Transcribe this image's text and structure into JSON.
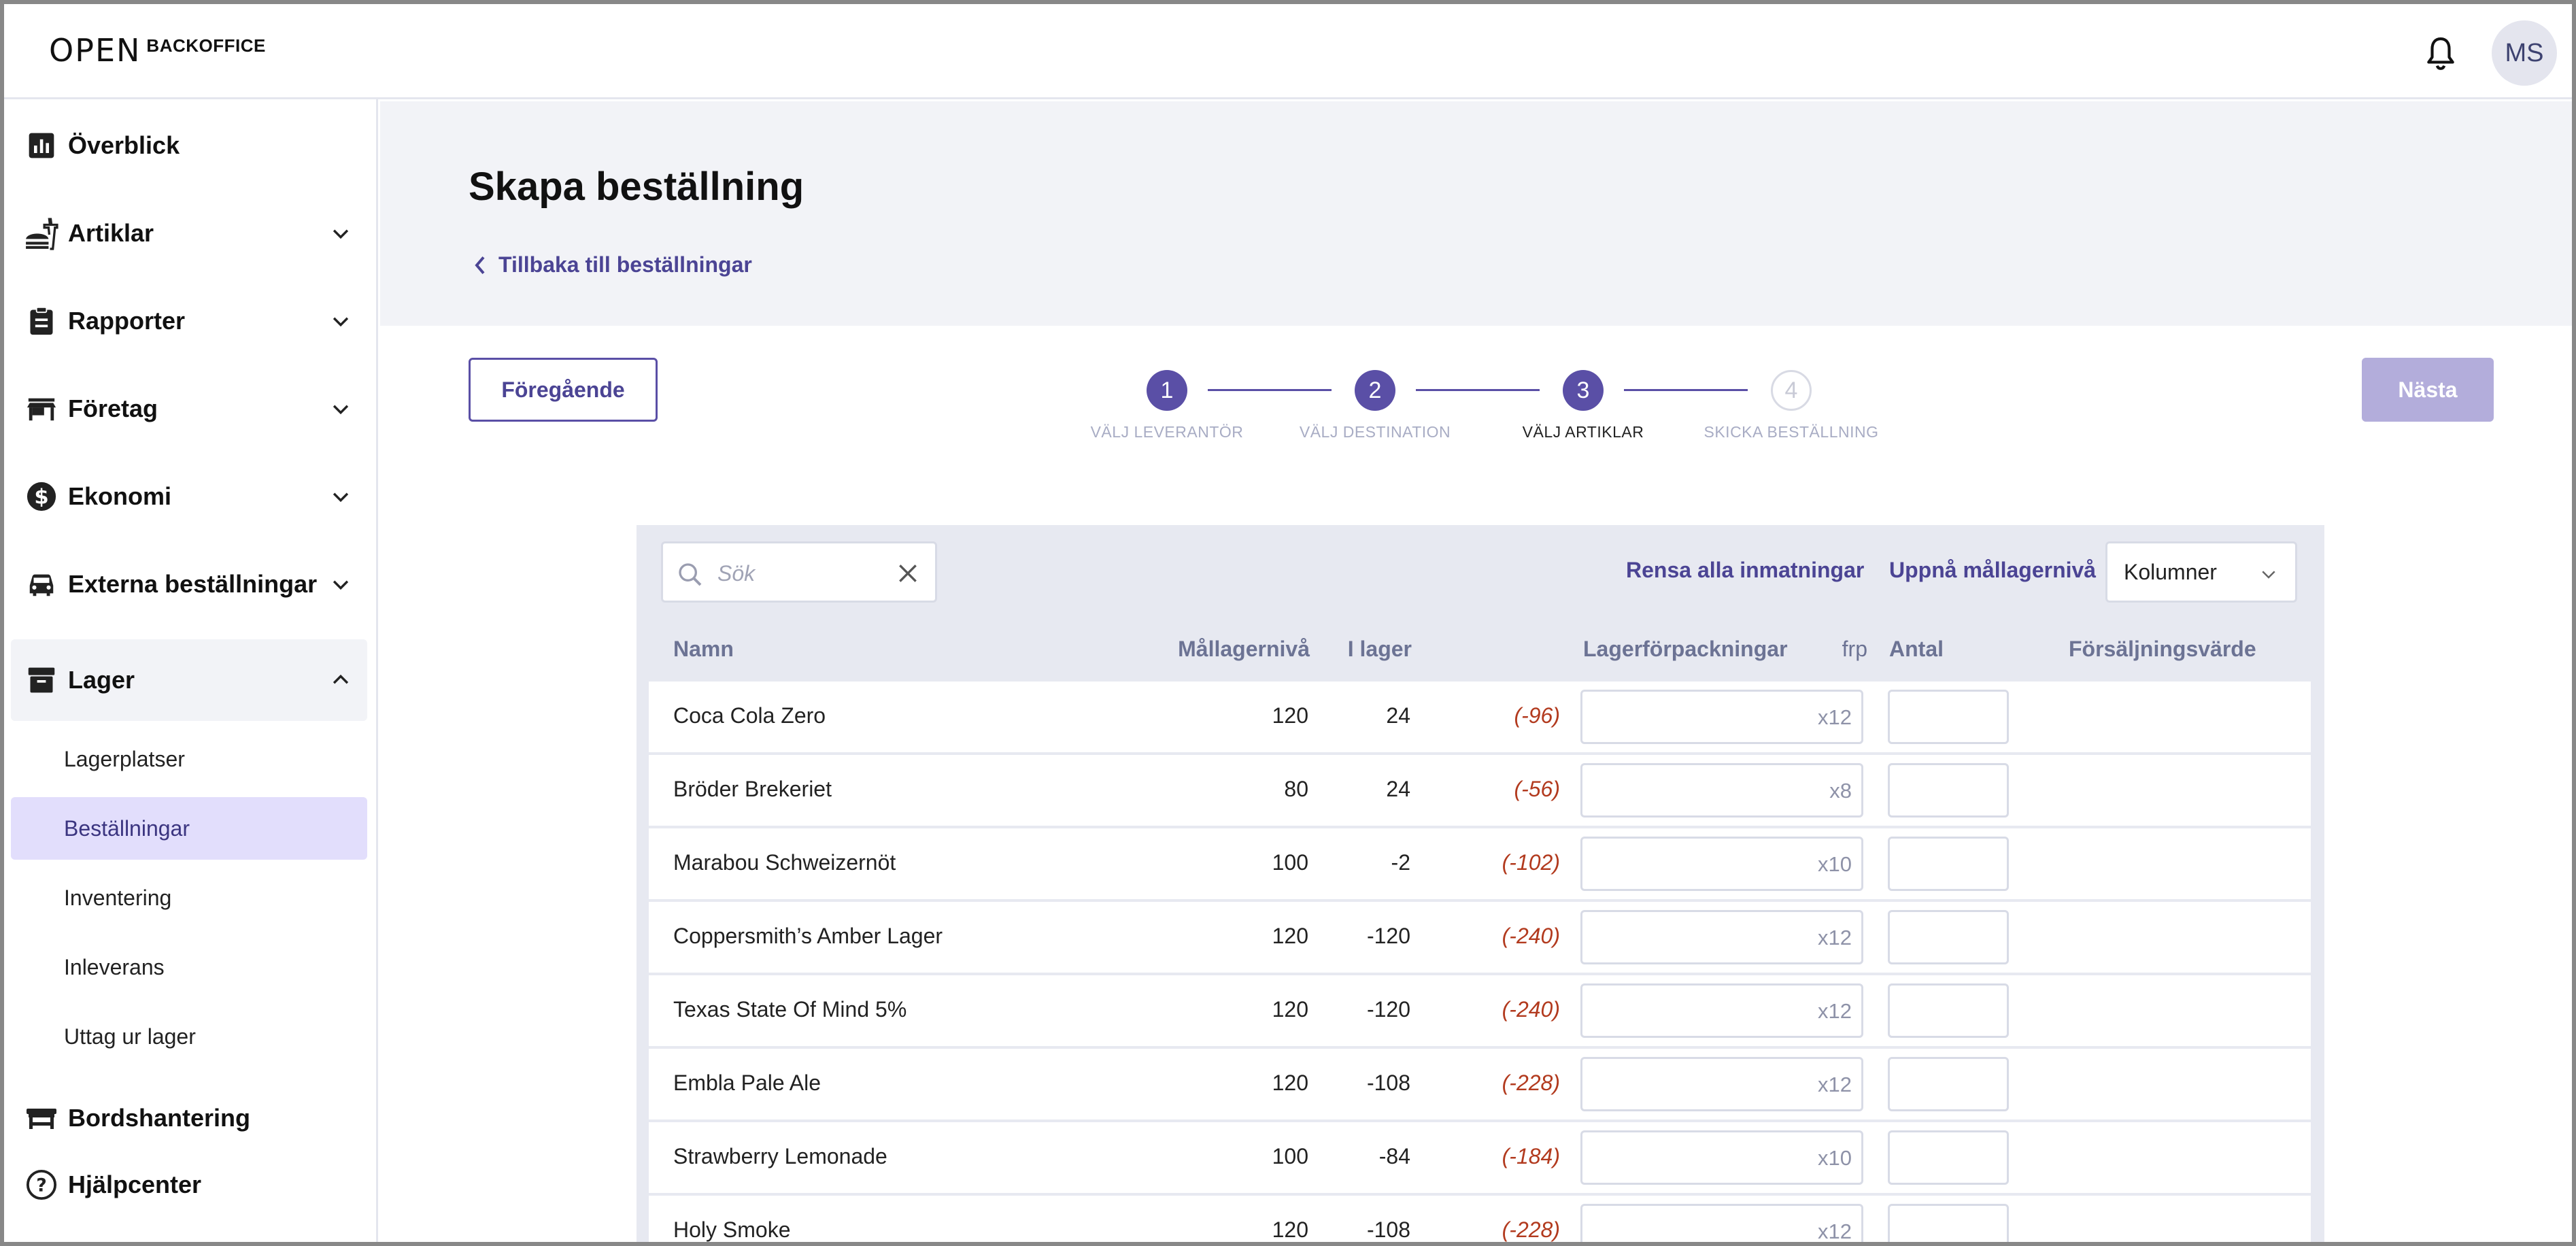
{
  "app": {
    "logo_mark": "OPEN",
    "logo_text": "BACKOFFICE",
    "avatar_initials": "MS"
  },
  "sidebar": {
    "items": [
      {
        "label": "Överblick",
        "icon": "chart-icon"
      },
      {
        "label": "Artiklar",
        "icon": "food-icon"
      },
      {
        "label": "Rapporter",
        "icon": "clipboard-icon"
      },
      {
        "label": "Företag",
        "icon": "store-icon"
      },
      {
        "label": "Ekonomi",
        "icon": "dollar-icon"
      },
      {
        "label": "Externa beställningar",
        "icon": "car-icon"
      },
      {
        "label": "Lager",
        "icon": "archive-icon"
      }
    ],
    "sub_items": [
      "Lagerplatser",
      "Beställningar",
      "Inventering",
      "Inleverans",
      "Uttag ur lager"
    ],
    "bottom_items": [
      {
        "label": "Bordshantering",
        "icon": "table-icon"
      },
      {
        "label": "Hjälpcenter",
        "icon": "help-icon"
      }
    ],
    "active_sub": "Beställningar"
  },
  "header": {
    "title": "Skapa beställning",
    "back_label": "Tillbaka till beställningar"
  },
  "wizard": {
    "prev_label": "Föregående",
    "next_label": "Nästa",
    "steps": [
      {
        "num": "1",
        "label": "VÄLJ LEVERANTÖR"
      },
      {
        "num": "2",
        "label": "VÄLJ DESTINATION"
      },
      {
        "num": "3",
        "label": "VÄLJ ARTIKLAR"
      },
      {
        "num": "4",
        "label": "SKICKA BESTÄLLNING"
      }
    ],
    "current_step": 3
  },
  "toolbar": {
    "search_placeholder": "Sök",
    "clear_label": "Rensa alla inmatningar",
    "target_label": "Uppnå mållagernivå",
    "columns_label": "Kolumner"
  },
  "table": {
    "headers": {
      "name": "Namn",
      "target": "Mållagernivå",
      "stock": "I lager",
      "packs": "Lagerförpackningar",
      "frp": "frp",
      "qty": "Antal",
      "sales": "Försäljningsvärde"
    },
    "rows": [
      {
        "name": "Coca Cola Zero",
        "target": "120",
        "stock": "24",
        "diff": "(-96)",
        "pack": "x12"
      },
      {
        "name": "Bröder Brekeriet",
        "target": "80",
        "stock": "24",
        "diff": "(-56)",
        "pack": "x8"
      },
      {
        "name": "Marabou Schweizernöt",
        "target": "100",
        "stock": "-2",
        "diff": "(-102)",
        "pack": "x10"
      },
      {
        "name": "Coppersmith’s Amber Lager",
        "target": "120",
        "stock": "-120",
        "diff": "(-240)",
        "pack": "x12"
      },
      {
        "name": "Texas State Of Mind 5%",
        "target": "120",
        "stock": "-120",
        "diff": "(-240)",
        "pack": "x12"
      },
      {
        "name": "Embla Pale Ale",
        "target": "120",
        "stock": "-108",
        "diff": "(-228)",
        "pack": "x12"
      },
      {
        "name": "Strawberry Lemonade",
        "target": "100",
        "stock": "-84",
        "diff": "(-184)",
        "pack": "x10"
      },
      {
        "name": "Holy Smoke",
        "target": "120",
        "stock": "-108",
        "diff": "(-228)",
        "pack": "x12"
      }
    ]
  },
  "colors": {
    "accent": "#5a4fa6",
    "negative": "#b23a1e",
    "active_bg": "#e2defc"
  }
}
